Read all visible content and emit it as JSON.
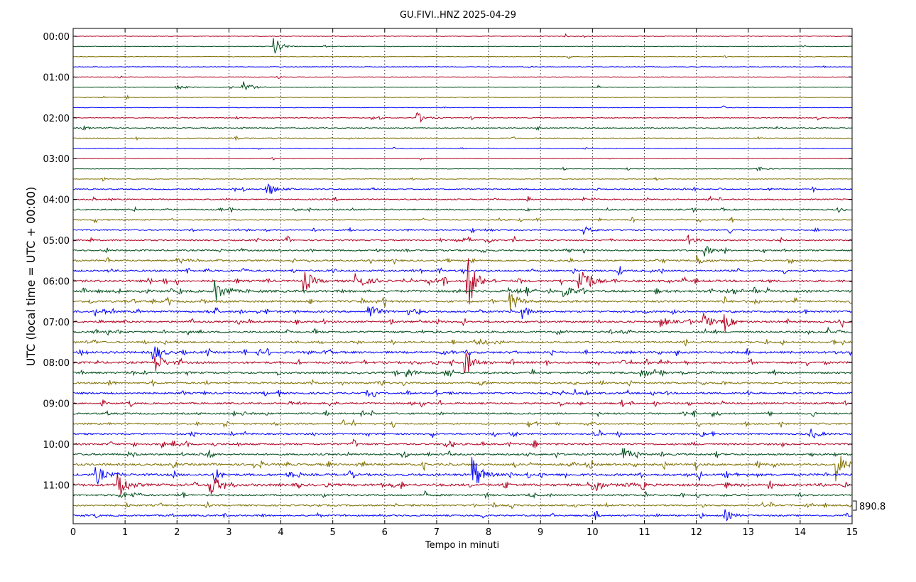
{
  "chart_data": {
    "type": "line",
    "title": "GU.FIVI..HNZ 2025-04-29",
    "xlabel": "Tempo in minuti",
    "ylabel": "UTC (local time = UTC + 00:00)",
    "xlim": [
      0,
      15
    ],
    "x_ticks": [
      "0",
      "1",
      "2",
      "3",
      "4",
      "5",
      "6",
      "7",
      "8",
      "9",
      "10",
      "11",
      "12",
      "13",
      "14",
      "15"
    ],
    "y_ticks": [
      "00:00",
      "01:00",
      "02:00",
      "03:00",
      "04:00",
      "05:00",
      "06:00",
      "07:00",
      "08:00",
      "09:00",
      "10:00",
      "11:00"
    ],
    "trace_interval_minutes": 15,
    "trace_count": 48,
    "trace_colors": [
      "#b00020",
      "#004d1a",
      "#7f6f00",
      "#0000ff"
    ],
    "vertical_grid": "dotted",
    "scale_label": "890.8",
    "activity": [
      0.05,
      0.05,
      0.06,
      0.06,
      0.06,
      0.06,
      0.06,
      0.06,
      0.12,
      0.18,
      0.15,
      0.1,
      0.06,
      0.06,
      0.07,
      0.25,
      0.3,
      0.32,
      0.3,
      0.3,
      0.35,
      0.4,
      0.42,
      0.48,
      0.6,
      0.65,
      0.55,
      0.5,
      0.5,
      0.5,
      0.52,
      0.6,
      0.58,
      0.5,
      0.48,
      0.5,
      0.45,
      0.45,
      0.42,
      0.42,
      0.48,
      0.5,
      0.6,
      0.65,
      0.7,
      0.45,
      0.45,
      0.4
    ],
    "events": [
      {
        "trace": 1,
        "minute": 3.88,
        "amp": 12
      },
      {
        "trace": 5,
        "minute": 1.98,
        "amp": 4
      },
      {
        "trace": 5,
        "minute": 3.27,
        "amp": 11
      },
      {
        "trace": 8,
        "minute": 6.62,
        "amp": 9
      },
      {
        "trace": 13,
        "minute": 13.2,
        "amp": 3
      },
      {
        "trace": 15,
        "minute": 3.72,
        "amp": 13
      },
      {
        "trace": 19,
        "minute": 9.85,
        "amp": 5
      },
      {
        "trace": 20,
        "minute": 11.85,
        "amp": 6
      },
      {
        "trace": 21,
        "minute": 12.15,
        "amp": 8
      },
      {
        "trace": 22,
        "minute": 11.98,
        "amp": 9
      },
      {
        "trace": 24,
        "minute": 4.45,
        "amp": 16
      },
      {
        "trace": 24,
        "minute": 5.45,
        "amp": 15
      },
      {
        "trace": 24,
        "minute": 7.6,
        "amp": 40
      },
      {
        "trace": 24,
        "minute": 9.75,
        "amp": 30
      },
      {
        "trace": 25,
        "minute": 2.75,
        "amp": 15
      },
      {
        "trace": 25,
        "minute": 9.45,
        "amp": 10
      },
      {
        "trace": 26,
        "minute": 8.42,
        "amp": 16
      },
      {
        "trace": 27,
        "minute": 5.7,
        "amp": 12
      },
      {
        "trace": 27,
        "minute": 8.65,
        "amp": 10
      },
      {
        "trace": 28,
        "minute": 11.3,
        "amp": 9
      },
      {
        "trace": 28,
        "minute": 12.15,
        "amp": 12
      },
      {
        "trace": 28,
        "minute": 12.55,
        "amp": 10
      },
      {
        "trace": 31,
        "minute": 1.55,
        "amp": 12
      },
      {
        "trace": 32,
        "minute": 1.6,
        "amp": 14
      },
      {
        "trace": 32,
        "minute": 7.55,
        "amp": 18
      },
      {
        "trace": 33,
        "minute": 6.42,
        "amp": 7
      },
      {
        "trace": 33,
        "minute": 10.95,
        "amp": 7
      },
      {
        "trace": 39,
        "minute": 14.2,
        "amp": 8
      },
      {
        "trace": 41,
        "minute": 10.6,
        "amp": 9
      },
      {
        "trace": 42,
        "minute": 14.7,
        "amp": 22
      },
      {
        "trace": 43,
        "minute": 0.45,
        "amp": 14
      },
      {
        "trace": 43,
        "minute": 7.7,
        "amp": 28
      },
      {
        "trace": 44,
        "minute": 0.88,
        "amp": 22
      },
      {
        "trace": 44,
        "minute": 2.65,
        "amp": 18
      },
      {
        "trace": 44,
        "minute": 10.0,
        "amp": 8
      },
      {
        "trace": 47,
        "minute": 12.55,
        "amp": 8
      }
    ]
  }
}
